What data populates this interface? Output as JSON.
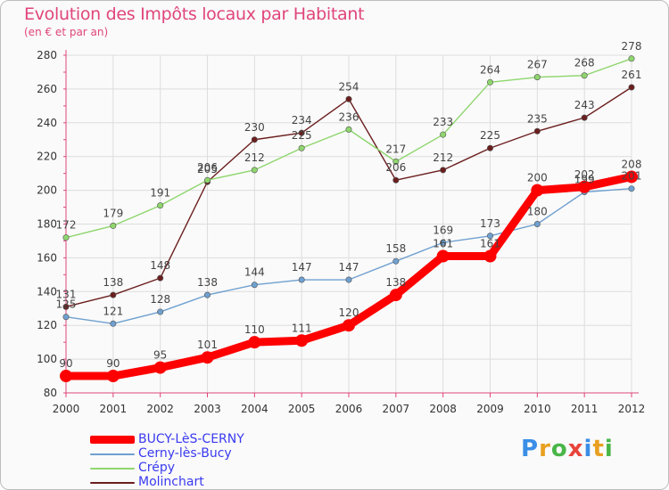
{
  "header": {
    "title": "Evolution des Impôts locaux par Habitant",
    "subtitle": "(en € et par an)"
  },
  "brand": {
    "letters": [
      "P",
      "r",
      "o",
      "x",
      "i",
      "t",
      "i"
    ],
    "colors": [
      "#3a8ee6",
      "#e8a020",
      "#49b648",
      "#e8443a",
      "#3a8ee6",
      "#e8a020",
      "#49b648"
    ]
  },
  "chart_data": {
    "type": "line",
    "title": "Evolution des Impôts locaux par Habitant",
    "subtitle": "(en € et par an)",
    "xlabel": "",
    "ylabel": "",
    "categories": [
      "2000",
      "2001",
      "2002",
      "2003",
      "2004",
      "2005",
      "2006",
      "2007",
      "2008",
      "2009",
      "2010",
      "2011",
      "2012"
    ],
    "ylim": [
      80,
      280
    ],
    "yticks": [
      80,
      100,
      120,
      140,
      160,
      180,
      200,
      220,
      240,
      260,
      280
    ],
    "grid": true,
    "legend_position": "bottom-left",
    "series": [
      {
        "name": "Molinchart",
        "color": "#6b1e1e",
        "values": [
          131,
          138,
          148,
          205,
          230,
          234,
          254,
          206,
          212,
          225,
          235,
          243,
          261
        ]
      },
      {
        "name": "Crépy",
        "color": "#8fd66e",
        "values": [
          172,
          179,
          191,
          206,
          212,
          225,
          236,
          217,
          233,
          264,
          267,
          268,
          278
        ]
      },
      {
        "name": "Cerny-lès-Bucy",
        "color": "#6fa0d0",
        "values": [
          125,
          121,
          128,
          138,
          144,
          147,
          147,
          158,
          169,
          173,
          180,
          199,
          201
        ]
      },
      {
        "name": "BUCY-LèS-CERNY",
        "color": "#ff0000",
        "values": [
          90,
          90,
          95,
          101,
          110,
          111,
          120,
          138,
          161,
          161,
          200,
          202,
          208
        ]
      }
    ],
    "legend_order": [
      "BUCY-LèS-CERNY",
      "Cerny-lès-Bucy",
      "Crépy",
      "Molinchart"
    ]
  }
}
